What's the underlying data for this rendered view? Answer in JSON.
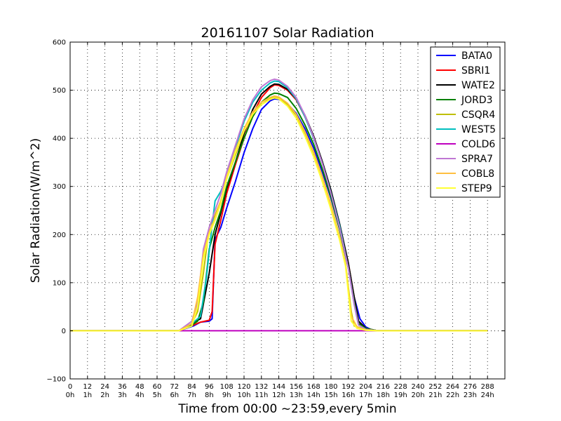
{
  "chart_data": {
    "type": "line",
    "title": "20161107 Solar Radiation",
    "xlabel": "Time from 00:00 ~23:59,every 5min",
    "ylabel": "Solar Radiation(W/m^2)",
    "xlim": [
      0,
      300
    ],
    "ylim": [
      -100,
      600
    ],
    "grid": true,
    "legend_position": "top-right",
    "x_ticks": [
      0,
      12,
      24,
      36,
      48,
      60,
      72,
      84,
      96,
      108,
      120,
      132,
      144,
      156,
      168,
      180,
      192,
      204,
      216,
      228,
      240,
      252,
      264,
      276,
      288
    ],
    "x_tick_labels": [
      "0",
      "12",
      "24",
      "36",
      "48",
      "60",
      "72",
      "84",
      "96",
      "108",
      "120",
      "132",
      "144",
      "156",
      "168",
      "180",
      "192",
      "204",
      "216",
      "228",
      "240",
      "252",
      "264",
      "276",
      "288"
    ],
    "x_tick_sublabels": [
      "0h",
      "1h",
      "2h",
      "3h",
      "4h",
      "5h",
      "6h",
      "7h",
      "8h",
      "9h",
      "10h",
      "11h",
      "12h",
      "13h",
      "14h",
      "15h",
      "16h",
      "17h",
      "18h",
      "19h",
      "20h",
      "21h",
      "22h",
      "23h",
      "24h"
    ],
    "y_ticks": [
      -100,
      0,
      100,
      200,
      300,
      400,
      500,
      600
    ],
    "y_tick_labels": [
      "−100",
      "0",
      "100",
      "200",
      "300",
      "400",
      "500",
      "600"
    ],
    "series": [
      {
        "name": "BATA0",
        "color": "#0000ff",
        "points": [
          [
            0,
            0
          ],
          [
            75,
            0
          ],
          [
            85,
            10
          ],
          [
            90,
            18
          ],
          [
            96,
            20
          ],
          [
            98,
            25
          ],
          [
            100,
            190
          ],
          [
            104,
            215
          ],
          [
            108,
            255
          ],
          [
            114,
            310
          ],
          [
            120,
            370
          ],
          [
            126,
            420
          ],
          [
            132,
            460
          ],
          [
            138,
            478
          ],
          [
            141,
            482
          ],
          [
            144,
            481
          ],
          [
            150,
            472
          ],
          [
            156,
            452
          ],
          [
            162,
            420
          ],
          [
            168,
            380
          ],
          [
            174,
            330
          ],
          [
            180,
            275
          ],
          [
            186,
            210
          ],
          [
            192,
            130
          ],
          [
            196,
            70
          ],
          [
            200,
            25
          ],
          [
            204,
            8
          ],
          [
            208,
            2
          ],
          [
            212,
            0
          ],
          [
            288,
            0
          ]
        ]
      },
      {
        "name": "SBRI1",
        "color": "#ff0000",
        "points": [
          [
            0,
            0
          ],
          [
            75,
            0
          ],
          [
            85,
            12
          ],
          [
            90,
            18
          ],
          [
            96,
            22
          ],
          [
            98,
            40
          ],
          [
            100,
            180
          ],
          [
            104,
            230
          ],
          [
            108,
            285
          ],
          [
            114,
            345
          ],
          [
            120,
            400
          ],
          [
            126,
            450
          ],
          [
            132,
            485
          ],
          [
            138,
            505
          ],
          [
            141,
            511
          ],
          [
            144,
            510
          ],
          [
            150,
            500
          ],
          [
            156,
            480
          ],
          [
            162,
            445
          ],
          [
            168,
            402
          ],
          [
            174,
            350
          ],
          [
            180,
            290
          ],
          [
            186,
            220
          ],
          [
            192,
            140
          ],
          [
            196,
            70
          ],
          [
            199,
            20
          ],
          [
            204,
            5
          ],
          [
            212,
            0
          ],
          [
            288,
            0
          ]
        ]
      },
      {
        "name": "WATE2",
        "color": "#000000",
        "points": [
          [
            0,
            0
          ],
          [
            75,
            0
          ],
          [
            84,
            15
          ],
          [
            90,
            25
          ],
          [
            96,
            120
          ],
          [
            100,
            200
          ],
          [
            104,
            245
          ],
          [
            108,
            295
          ],
          [
            114,
            350
          ],
          [
            120,
            410
          ],
          [
            126,
            460
          ],
          [
            132,
            492
          ],
          [
            138,
            508
          ],
          [
            141,
            513
          ],
          [
            144,
            512
          ],
          [
            150,
            502
          ],
          [
            156,
            482
          ],
          [
            162,
            448
          ],
          [
            168,
            405
          ],
          [
            174,
            352
          ],
          [
            180,
            292
          ],
          [
            186,
            222
          ],
          [
            192,
            140
          ],
          [
            196,
            70
          ],
          [
            199,
            20
          ],
          [
            204,
            5
          ],
          [
            212,
            0
          ],
          [
            288,
            0
          ]
        ]
      },
      {
        "name": "JORD3",
        "color": "#008000",
        "points": [
          [
            0,
            0
          ],
          [
            75,
            0
          ],
          [
            84,
            12
          ],
          [
            88,
            20
          ],
          [
            92,
            60
          ],
          [
            96,
            170
          ],
          [
            100,
            215
          ],
          [
            104,
            250
          ],
          [
            108,
            300
          ],
          [
            114,
            350
          ],
          [
            120,
            400
          ],
          [
            126,
            445
          ],
          [
            132,
            475
          ],
          [
            138,
            490
          ],
          [
            141,
            494
          ],
          [
            144,
            493
          ],
          [
            150,
            485
          ],
          [
            156,
            462
          ],
          [
            162,
            428
          ],
          [
            168,
            388
          ],
          [
            174,
            336
          ],
          [
            180,
            278
          ],
          [
            186,
            210
          ],
          [
            192,
            130
          ],
          [
            196,
            60
          ],
          [
            199,
            15
          ],
          [
            204,
            5
          ],
          [
            212,
            0
          ],
          [
            288,
            0
          ]
        ]
      },
      {
        "name": "CSQR4",
        "color": "#bfbf00",
        "points": [
          [
            0,
            0
          ],
          [
            75,
            0
          ],
          [
            84,
            15
          ],
          [
            88,
            40
          ],
          [
            92,
            120
          ],
          [
            96,
            215
          ],
          [
            100,
            240
          ],
          [
            104,
            270
          ],
          [
            108,
            315
          ],
          [
            114,
            365
          ],
          [
            120,
            415
          ],
          [
            126,
            450
          ],
          [
            132,
            470
          ],
          [
            138,
            483
          ],
          [
            141,
            486
          ],
          [
            144,
            484
          ],
          [
            150,
            470
          ],
          [
            156,
            448
          ],
          [
            162,
            412
          ],
          [
            168,
            370
          ],
          [
            174,
            320
          ],
          [
            180,
            262
          ],
          [
            186,
            195
          ],
          [
            190,
            140
          ],
          [
            194,
            40
          ],
          [
            196,
            10
          ],
          [
            204,
            3
          ],
          [
            212,
            0
          ],
          [
            288,
            0
          ]
        ]
      },
      {
        "name": "WEST5",
        "color": "#00bfbf",
        "points": [
          [
            0,
            0
          ],
          [
            75,
            0
          ],
          [
            84,
            15
          ],
          [
            90,
            30
          ],
          [
            94,
            110
          ],
          [
            98,
            220
          ],
          [
            100,
            270
          ],
          [
            104,
            290
          ],
          [
            108,
            320
          ],
          [
            114,
            380
          ],
          [
            120,
            435
          ],
          [
            126,
            475
          ],
          [
            132,
            500
          ],
          [
            138,
            515
          ],
          [
            141,
            519
          ],
          [
            144,
            518
          ],
          [
            150,
            505
          ],
          [
            156,
            482
          ],
          [
            162,
            445
          ],
          [
            168,
            400
          ],
          [
            174,
            348
          ],
          [
            180,
            286
          ],
          [
            186,
            218
          ],
          [
            192,
            130
          ],
          [
            196,
            55
          ],
          [
            199,
            12
          ],
          [
            204,
            3
          ],
          [
            212,
            0
          ],
          [
            288,
            0
          ]
        ]
      },
      {
        "name": "COLD6",
        "color": "#bf00bf",
        "points": [
          [
            0,
            0
          ],
          [
            204,
            0
          ],
          [
            208,
            0
          ],
          [
            288,
            0
          ]
        ]
      },
      {
        "name": "SPRA7",
        "color": "#bf77d4",
        "points": [
          [
            0,
            0
          ],
          [
            75,
            0
          ],
          [
            84,
            20
          ],
          [
            88,
            60
          ],
          [
            92,
            170
          ],
          [
            96,
            215
          ],
          [
            100,
            250
          ],
          [
            104,
            285
          ],
          [
            108,
            330
          ],
          [
            114,
            385
          ],
          [
            120,
            440
          ],
          [
            126,
            480
          ],
          [
            132,
            507
          ],
          [
            138,
            520
          ],
          [
            141,
            523
          ],
          [
            144,
            521
          ],
          [
            150,
            508
          ],
          [
            156,
            485
          ],
          [
            162,
            448
          ],
          [
            168,
            402
          ],
          [
            174,
            348
          ],
          [
            180,
            285
          ],
          [
            186,
            214
          ],
          [
            192,
            130
          ],
          [
            196,
            55
          ],
          [
            199,
            12
          ],
          [
            204,
            3
          ],
          [
            212,
            0
          ],
          [
            288,
            0
          ]
        ]
      },
      {
        "name": "COBL8",
        "color": "#ffbf40",
        "points": [
          [
            0,
            0
          ],
          [
            75,
            0
          ],
          [
            84,
            15
          ],
          [
            88,
            70
          ],
          [
            92,
            160
          ],
          [
            96,
            205
          ],
          [
            100,
            235
          ],
          [
            104,
            270
          ],
          [
            108,
            320
          ],
          [
            114,
            375
          ],
          [
            120,
            420
          ],
          [
            126,
            455
          ],
          [
            132,
            475
          ],
          [
            138,
            485
          ],
          [
            141,
            488
          ],
          [
            144,
            486
          ],
          [
            150,
            473
          ],
          [
            156,
            450
          ],
          [
            162,
            414
          ],
          [
            168,
            372
          ],
          [
            174,
            320
          ],
          [
            180,
            262
          ],
          [
            186,
            194
          ],
          [
            190,
            140
          ],
          [
            194,
            30
          ],
          [
            198,
            8
          ],
          [
            204,
            2
          ],
          [
            212,
            0
          ],
          [
            288,
            0
          ]
        ]
      },
      {
        "name": "STEP9",
        "color": "#ffff33",
        "points": [
          [
            0,
            0
          ],
          [
            75,
            0
          ],
          [
            84,
            10
          ],
          [
            88,
            50
          ],
          [
            92,
            150
          ],
          [
            96,
            200
          ],
          [
            100,
            230
          ],
          [
            104,
            265
          ],
          [
            108,
            315
          ],
          [
            114,
            370
          ],
          [
            120,
            415
          ],
          [
            126,
            450
          ],
          [
            132,
            470
          ],
          [
            138,
            481
          ],
          [
            141,
            484
          ],
          [
            144,
            482
          ],
          [
            150,
            467
          ],
          [
            156,
            442
          ],
          [
            162,
            405
          ],
          [
            168,
            362
          ],
          [
            174,
            310
          ],
          [
            180,
            252
          ],
          [
            186,
            188
          ],
          [
            190,
            135
          ],
          [
            194,
            20
          ],
          [
            198,
            5
          ],
          [
            204,
            1
          ],
          [
            212,
            0
          ],
          [
            288,
            0
          ]
        ]
      }
    ]
  }
}
